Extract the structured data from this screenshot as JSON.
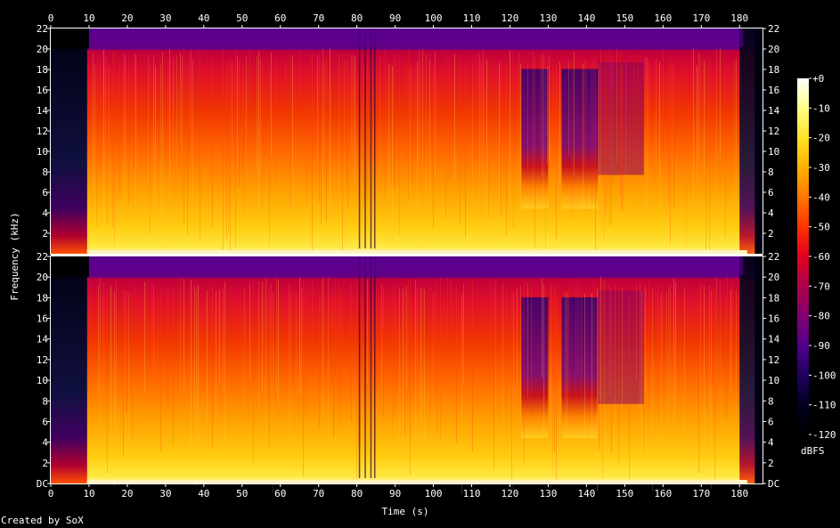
{
  "chart_data": {
    "type": "heatmap",
    "subtype": "spectrogram",
    "title": "",
    "xlabel": "Time (s)",
    "ylabel": "Frequency (kHz)",
    "xlim": [
      0,
      186
    ],
    "ylim_khz": [
      0,
      22
    ],
    "x_ticks": [
      "0",
      "10",
      "20",
      "30",
      "40",
      "50",
      "60",
      "70",
      "80",
      "90",
      "100",
      "110",
      "120",
      "130",
      "140",
      "150",
      "160",
      "170",
      "180"
    ],
    "y_ticks_top_channel": [
      "2",
      "4",
      "6",
      "8",
      "10",
      "12",
      "14",
      "16",
      "18",
      "20",
      "22"
    ],
    "y_ticks_bottom_channel": [
      "DC",
      "2",
      "4",
      "6",
      "8",
      "10",
      "12",
      "14",
      "16",
      "18",
      "20",
      "22"
    ],
    "channels": 2,
    "colorbar": {
      "label": "dBFS",
      "range": [
        -120,
        0
      ],
      "ticks": [
        "+0",
        "-10",
        "-20",
        "-30",
        "-40",
        "-50",
        "-60",
        "-70",
        "-80",
        "-90",
        "-100",
        "-110",
        "-120"
      ],
      "colors": [
        "#ffffff",
        "#ffff90",
        "#ffe020",
        "#ffb000",
        "#ff7a00",
        "#ff3000",
        "#e00020",
        "#b0004a",
        "#800070",
        "#50008a",
        "#200060",
        "#000020",
        "#000000"
      ]
    },
    "intensity_profile_time": [
      {
        "t": [
          0,
          9.5
        ],
        "level": "quiet"
      },
      {
        "t": [
          9.5,
          123
        ],
        "level": "loud"
      },
      {
        "t": [
          123,
          130
        ],
        "level": "medium"
      },
      {
        "t": [
          130,
          133
        ],
        "level": "loud"
      },
      {
        "t": [
          133,
          143
        ],
        "level": "medium"
      },
      {
        "t": [
          143,
          155
        ],
        "level": "medium-quiet"
      },
      {
        "t": [
          155,
          180
        ],
        "level": "loud"
      },
      {
        "t": [
          180,
          186
        ],
        "level": "fade"
      }
    ]
  },
  "footer": {
    "credit": "Created by SoX"
  }
}
